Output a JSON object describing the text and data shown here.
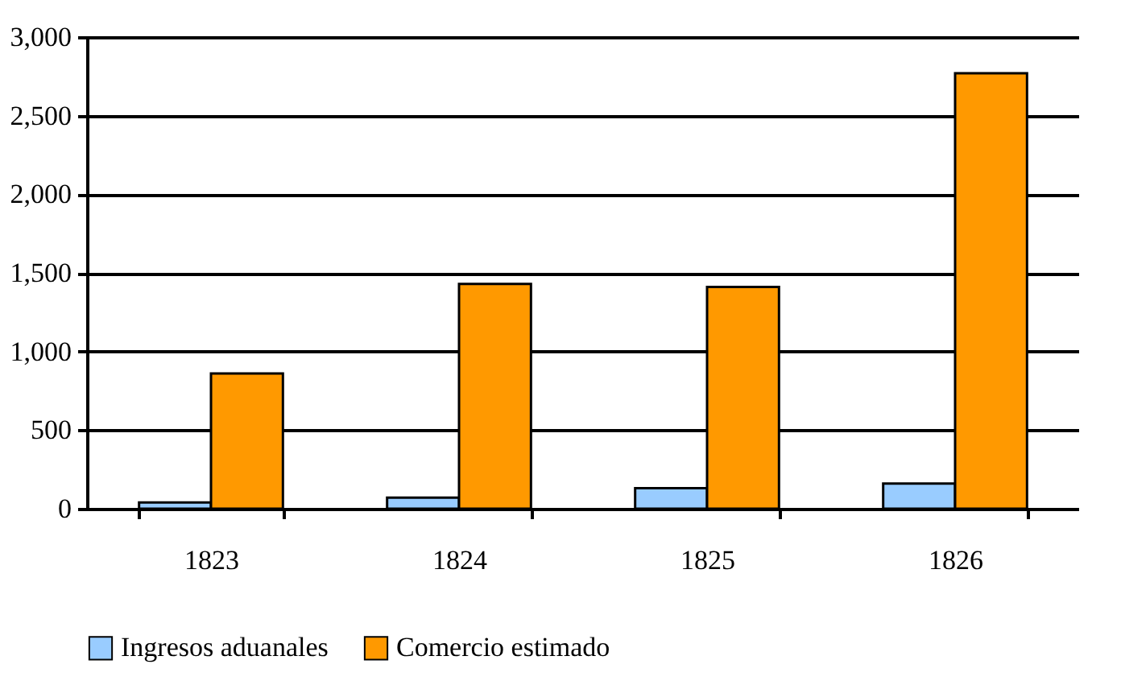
{
  "chart_data": {
    "type": "bar",
    "categories": [
      "1823",
      "1824",
      "1825",
      "1826"
    ],
    "series": [
      {
        "name": "Ingresos aduanales",
        "color": "#99ccff",
        "values": [
          40,
          70,
          130,
          160
        ]
      },
      {
        "name": "Comercio estimado",
        "color": "#ff9900",
        "values": [
          860,
          1430,
          1410,
          2770
        ]
      }
    ],
    "ylim": [
      0,
      3000
    ],
    "yticks": [
      0,
      500,
      {
        "value": 1000,
        "label": "1,000"
      },
      {
        "value": 1500,
        "label": "1,500"
      },
      {
        "value": 2000,
        "label": "2,000"
      },
      {
        "value": 2500,
        "label": "2,500"
      },
      {
        "value": 3000,
        "label": "3,000"
      }
    ],
    "grid": "y",
    "legend": "bottom"
  }
}
